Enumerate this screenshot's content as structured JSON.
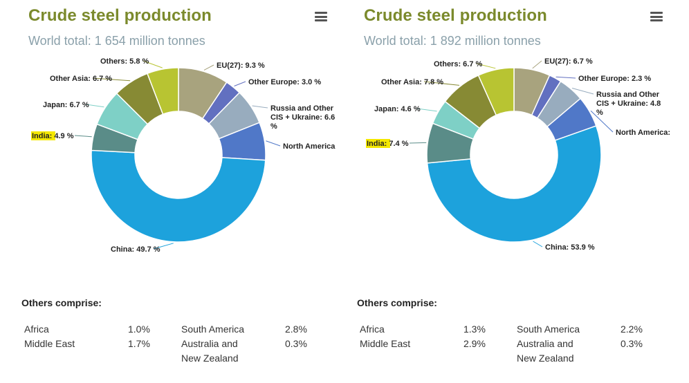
{
  "menu_icon": "hamburger-menu-icon",
  "highlight_color": "#f4e800",
  "panels": [
    {
      "title": "Crude steel production",
      "subtitle": "World total: 1 654 million tonnes",
      "others_heading": "Others comprise:",
      "others": [
        {
          "name": "Africa",
          "value": "1.0%"
        },
        {
          "name": "Middle East",
          "value": "1.7%"
        },
        {
          "name": "South America",
          "value": "2.8%"
        },
        {
          "name": "Australia and New Zealand",
          "value": "0.3%"
        }
      ]
    },
    {
      "title": "Crude steel production",
      "subtitle": "World total: 1 892 million tonnes",
      "others_heading": "Others comprise:",
      "others": [
        {
          "name": "Africa",
          "value": "1.3%"
        },
        {
          "name": "Middle East",
          "value": "2.9%"
        },
        {
          "name": "South America",
          "value": "2.2%"
        },
        {
          "name": "Australia and New Zealand",
          "value": "0.3%"
        }
      ]
    }
  ],
  "chart_data": [
    {
      "type": "pie",
      "title": "Crude steel production",
      "subtitle": "World total: 1 654 million tonnes",
      "slices": [
        {
          "label": "EU(27): 9.3 %",
          "value": 9.3,
          "color": "#a8a37e"
        },
        {
          "label": "Other Europe: 3.0 %",
          "value": 3.0,
          "color": "#6270c0"
        },
        {
          "label": "Russia and Other CIS + Ukraine: 6.6 %",
          "value": 6.6,
          "color": "#98acbe"
        },
        {
          "label": "North America",
          "value": 7.0,
          "color": "#5078c8"
        },
        {
          "label": "China: 49.7 %",
          "value": 49.7,
          "color": "#1da2dc"
        },
        {
          "label": "India: 4.9 %",
          "value": 4.9,
          "color": "#5a8c88"
        },
        {
          "label": "Japan: 6.7 %",
          "value": 6.7,
          "color": "#7ed0c6"
        },
        {
          "label": "Other Asia: 6.7 %",
          "value": 6.7,
          "color": "#878a34"
        },
        {
          "label": "Others: 5.8 %",
          "value": 5.8,
          "color": "#b8c432"
        }
      ]
    },
    {
      "type": "pie",
      "title": "Crude steel production",
      "subtitle": "World total: 1 892 million tonnes",
      "slices": [
        {
          "label": "EU(27): 6.7 %",
          "value": 6.7,
          "color": "#a8a37e"
        },
        {
          "label": "Other Europe: 2.3 %",
          "value": 2.3,
          "color": "#6270c0"
        },
        {
          "label": "Russia and Other CIS + Ukraine: 4.8 %",
          "value": 4.8,
          "color": "#98acbe"
        },
        {
          "label": "North America:",
          "value": 5.8,
          "color": "#5078c8"
        },
        {
          "label": "China: 53.9 %",
          "value": 53.9,
          "color": "#1da2dc"
        },
        {
          "label": "India: 7.4 %",
          "value": 7.4,
          "color": "#5a8c88"
        },
        {
          "label": "Japan: 4.6 %",
          "value": 4.6,
          "color": "#7ed0c6"
        },
        {
          "label": "Other Asia: 7.8 %",
          "value": 7.8,
          "color": "#878a34"
        },
        {
          "label": "Others: 6.7 %",
          "value": 6.7,
          "color": "#b8c432"
        }
      ]
    }
  ]
}
